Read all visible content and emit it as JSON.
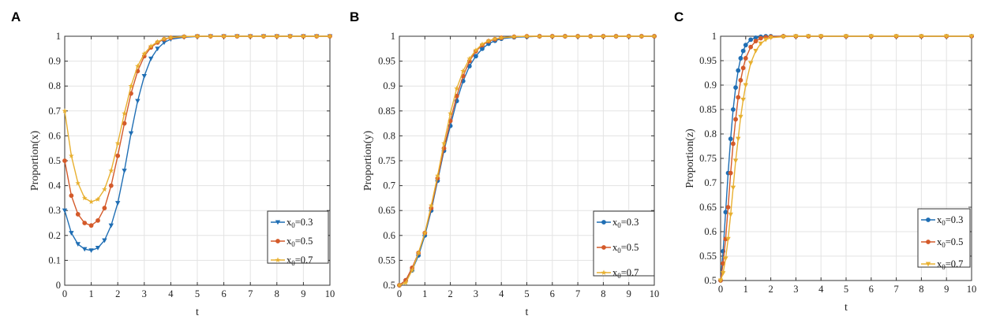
{
  "chart_data": [
    {
      "panel": "A",
      "type": "line",
      "xlabel": "t",
      "ylabel": "Proportion(x)",
      "xlim": [
        0,
        10
      ],
      "ylim": [
        0,
        1
      ],
      "xticks": [
        "0",
        "1",
        "2",
        "3",
        "4",
        "5",
        "6",
        "7",
        "8",
        "9",
        "10"
      ],
      "yticks": [
        "0",
        "0.1",
        "0.2",
        "0.3",
        "0.4",
        "0.5",
        "0.6",
        "0.7",
        "0.8",
        "0.9",
        "1"
      ],
      "grid": true,
      "legend_position": "bottom-right",
      "x": [
        0,
        0.25,
        0.5,
        0.75,
        1,
        1.25,
        1.5,
        1.75,
        2,
        2.25,
        2.5,
        2.75,
        3,
        3.25,
        3.5,
        3.75,
        4,
        4.5,
        5,
        5.5,
        6,
        6.5,
        7,
        7.5,
        8,
        8.5,
        9,
        9.5,
        10
      ],
      "series": [
        {
          "name": "x0=0.3",
          "label_main": "x",
          "label_sub": "0",
          "label_rest": "=0.3",
          "color": "#1f6eb4",
          "marker": "down-triangle",
          "values": [
            0.3,
            0.21,
            0.165,
            0.145,
            0.14,
            0.15,
            0.18,
            0.24,
            0.33,
            0.46,
            0.61,
            0.74,
            0.84,
            0.91,
            0.95,
            0.975,
            0.988,
            0.996,
            0.999,
            1,
            1,
            1,
            1,
            1,
            1,
            1,
            1,
            1,
            1
          ]
        },
        {
          "name": "x0=0.5",
          "label_main": "x",
          "label_sub": "0",
          "label_rest": "=0.5",
          "color": "#d45a2a",
          "marker": "circle",
          "values": [
            0.5,
            0.36,
            0.285,
            0.25,
            0.24,
            0.26,
            0.31,
            0.4,
            0.52,
            0.65,
            0.77,
            0.86,
            0.92,
            0.955,
            0.975,
            0.988,
            0.994,
            0.998,
            1,
            1,
            1,
            1,
            1,
            1,
            1,
            1,
            1,
            1,
            1
          ]
        },
        {
          "name": "x0=0.7",
          "label_main": "x",
          "label_sub": "0",
          "label_rest": "=0.7",
          "color": "#e8b030",
          "marker": "star",
          "values": [
            0.7,
            0.52,
            0.41,
            0.35,
            0.335,
            0.345,
            0.385,
            0.46,
            0.57,
            0.69,
            0.8,
            0.88,
            0.93,
            0.96,
            0.978,
            0.99,
            0.995,
            0.999,
            1,
            1,
            1,
            1,
            1,
            1,
            1,
            1,
            1,
            1,
            1
          ]
        }
      ]
    },
    {
      "panel": "B",
      "type": "line",
      "xlabel": "t",
      "ylabel": "Proportion(y)",
      "xlim": [
        0,
        10
      ],
      "ylim": [
        0.5,
        1
      ],
      "xticks": [
        "0",
        "1",
        "2",
        "3",
        "4",
        "5",
        "6",
        "7",
        "8",
        "9",
        "10"
      ],
      "yticks": [
        "0.5",
        "0.55",
        "0.6",
        "0.65",
        "0.7",
        "0.75",
        "0.8",
        "0.85",
        "0.9",
        "0.95",
        "1"
      ],
      "grid": true,
      "legend_position": "bottom-right",
      "x": [
        0,
        0.25,
        0.5,
        0.75,
        1,
        1.25,
        1.5,
        1.75,
        2,
        2.25,
        2.5,
        2.75,
        3,
        3.25,
        3.5,
        3.75,
        4,
        4.5,
        5,
        5.5,
        6,
        6.5,
        7,
        7.5,
        8,
        8.5,
        9,
        9.5,
        10
      ],
      "series": [
        {
          "name": "x0=0.3",
          "label_main": "x",
          "label_sub": "0",
          "label_rest": "=0.3",
          "color": "#1f6eb4",
          "marker": "circle",
          "values": [
            0.5,
            0.51,
            0.53,
            0.56,
            0.6,
            0.65,
            0.71,
            0.77,
            0.82,
            0.87,
            0.91,
            0.94,
            0.96,
            0.975,
            0.985,
            0.991,
            0.995,
            0.998,
            0.999,
            1,
            1,
            1,
            1,
            1,
            1,
            1,
            1,
            1,
            1
          ]
        },
        {
          "name": "x0=0.5",
          "label_main": "x",
          "label_sub": "0",
          "label_rest": "=0.5",
          "color": "#d45a2a",
          "marker": "circle",
          "values": [
            0.5,
            0.51,
            0.535,
            0.565,
            0.605,
            0.655,
            0.715,
            0.775,
            0.83,
            0.88,
            0.92,
            0.95,
            0.97,
            0.982,
            0.99,
            0.994,
            0.997,
            0.999,
            1,
            1,
            1,
            1,
            1,
            1,
            1,
            1,
            1,
            1,
            1
          ]
        },
        {
          "name": "x0=0.7",
          "label_main": "x",
          "label_sub": "0",
          "label_rest": "=0.7",
          "color": "#e8b030",
          "marker": "star",
          "values": [
            0.5,
            0.505,
            0.53,
            0.565,
            0.605,
            0.66,
            0.72,
            0.785,
            0.845,
            0.895,
            0.93,
            0.955,
            0.972,
            0.984,
            0.991,
            0.995,
            0.997,
            0.999,
            1,
            1,
            1,
            1,
            1,
            1,
            1,
            1,
            1,
            1,
            1
          ]
        }
      ]
    },
    {
      "panel": "C",
      "type": "line",
      "xlabel": "t",
      "ylabel": "Proportion(z)",
      "xlim": [
        0,
        10
      ],
      "ylim": [
        0.5,
        1
      ],
      "xticks": [
        "0",
        "1",
        "2",
        "3",
        "4",
        "5",
        "6",
        "7",
        "8",
        "9",
        "10"
      ],
      "yticks": [
        "0.5",
        "0.55",
        "0.6",
        "0.65",
        "0.7",
        "0.75",
        "0.8",
        "0.85",
        "0.9",
        "0.95",
        "1"
      ],
      "grid": true,
      "legend_position": "bottom-right",
      "x": [
        0,
        0.1,
        0.2,
        0.3,
        0.4,
        0.5,
        0.6,
        0.7,
        0.8,
        0.9,
        1,
        1.2,
        1.4,
        1.6,
        1.8,
        2,
        2.5,
        3,
        3.5,
        4,
        5,
        6,
        7,
        8,
        9,
        10
      ],
      "series": [
        {
          "name": "x0=0.3",
          "label_main": "x",
          "label_sub": "0",
          "label_rest": "=0.3",
          "color": "#1f6eb4",
          "marker": "circle",
          "values": [
            0.5,
            0.56,
            0.64,
            0.72,
            0.79,
            0.85,
            0.895,
            0.93,
            0.955,
            0.97,
            0.982,
            0.993,
            0.997,
            0.999,
            1,
            1,
            1,
            1,
            1,
            1,
            1,
            1,
            1,
            1,
            1,
            1
          ]
        },
        {
          "name": "x0=0.5",
          "label_main": "x",
          "label_sub": "0",
          "label_rest": "=0.5",
          "color": "#d45a2a",
          "marker": "circle",
          "values": [
            0.5,
            0.535,
            0.585,
            0.65,
            0.72,
            0.78,
            0.83,
            0.875,
            0.91,
            0.935,
            0.955,
            0.978,
            0.99,
            0.996,
            0.998,
            0.999,
            1,
            1,
            1,
            1,
            1,
            1,
            1,
            1,
            1,
            1
          ]
        },
        {
          "name": "x0=0.7",
          "label_main": "x",
          "label_sub": "0",
          "label_rest": "=0.7",
          "color": "#e8b030",
          "marker": "down-triangle",
          "values": [
            0.5,
            0.515,
            0.545,
            0.585,
            0.635,
            0.69,
            0.745,
            0.79,
            0.835,
            0.87,
            0.9,
            0.945,
            0.97,
            0.985,
            0.993,
            0.997,
            0.999,
            1,
            1,
            1,
            1,
            1,
            1,
            1,
            1,
            1
          ]
        }
      ]
    }
  ]
}
